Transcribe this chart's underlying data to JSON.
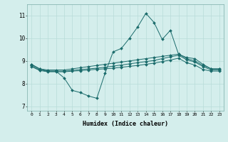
{
  "xlabel": "Humidex (Indice chaleur)",
  "bg_color": "#d4eeec",
  "line_color": "#1a6b6b",
  "grid_color": "#b8dcd8",
  "xlim": [
    -0.5,
    23.5
  ],
  "ylim": [
    6.8,
    11.5
  ],
  "xticks": [
    0,
    1,
    2,
    3,
    4,
    5,
    6,
    7,
    8,
    9,
    10,
    11,
    12,
    13,
    14,
    15,
    16,
    17,
    18,
    19,
    20,
    21,
    22,
    23
  ],
  "yticks": [
    7,
    8,
    9,
    10,
    11
  ],
  "line1_x": [
    0,
    1,
    2,
    3,
    4,
    5,
    6,
    7,
    8,
    9,
    10,
    11,
    12,
    13,
    14,
    15,
    16,
    17,
    18,
    19,
    20,
    21,
    22,
    23
  ],
  "line1_y": [
    8.85,
    8.65,
    8.55,
    8.55,
    8.25,
    7.7,
    7.6,
    7.45,
    7.35,
    8.45,
    9.4,
    9.55,
    10.0,
    10.5,
    11.1,
    10.7,
    9.95,
    10.35,
    9.3,
    9.15,
    9.1,
    8.85,
    8.65,
    8.65
  ],
  "line2_x": [
    0,
    1,
    2,
    3,
    4,
    5,
    6,
    7,
    8,
    9,
    10,
    11,
    12,
    13,
    14,
    15,
    16,
    17,
    18,
    19,
    20,
    21,
    22,
    23
  ],
  "line2_y": [
    8.85,
    8.65,
    8.6,
    8.6,
    8.6,
    8.65,
    8.7,
    8.75,
    8.8,
    8.85,
    8.9,
    8.95,
    9.0,
    9.05,
    9.1,
    9.15,
    9.2,
    9.25,
    9.3,
    9.1,
    9.0,
    8.8,
    8.65,
    8.65
  ],
  "line3_x": [
    0,
    1,
    2,
    3,
    4,
    5,
    6,
    7,
    8,
    9,
    10,
    11,
    12,
    13,
    14,
    15,
    16,
    17,
    18,
    19,
    20,
    21,
    22,
    23
  ],
  "line3_y": [
    8.8,
    8.6,
    8.55,
    8.55,
    8.55,
    8.58,
    8.62,
    8.65,
    8.68,
    8.72,
    8.77,
    8.82,
    8.87,
    8.92,
    8.97,
    9.02,
    9.1,
    9.18,
    9.25,
    9.05,
    8.95,
    8.75,
    8.6,
    8.6
  ],
  "line4_x": [
    0,
    1,
    2,
    3,
    4,
    5,
    6,
    7,
    8,
    9,
    10,
    11,
    12,
    13,
    14,
    15,
    16,
    17,
    18,
    19,
    20,
    21,
    22,
    23
  ],
  "line4_y": [
    8.75,
    8.58,
    8.52,
    8.52,
    8.52,
    8.55,
    8.57,
    8.6,
    8.63,
    8.65,
    8.68,
    8.72,
    8.76,
    8.8,
    8.85,
    8.9,
    8.97,
    9.04,
    9.12,
    8.92,
    8.82,
    8.62,
    8.55,
    8.55
  ]
}
